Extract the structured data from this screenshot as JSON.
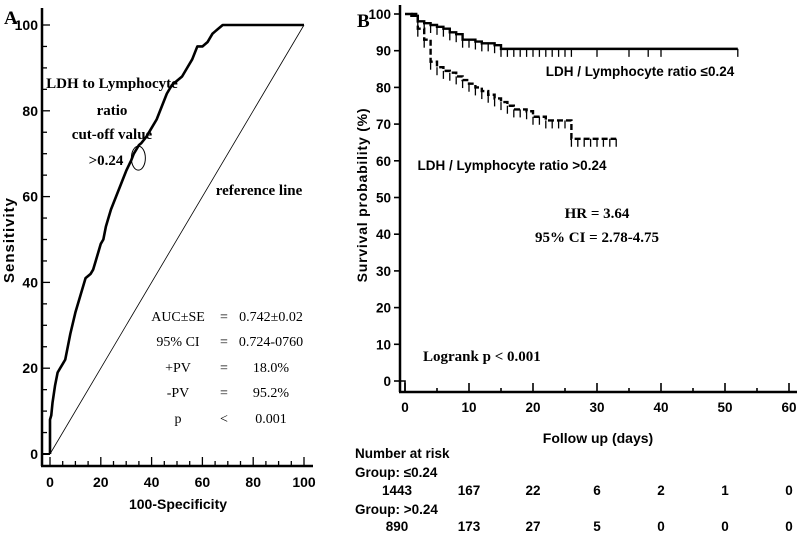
{
  "chart_data": [
    {
      "panel": "A",
      "type": "line",
      "title": "",
      "xlabel": "100-Specificity",
      "ylabel": "Sensitivity",
      "xlim": [
        0,
        100
      ],
      "ylim": [
        0,
        100
      ],
      "x_ticks": [
        0,
        20,
        40,
        60,
        80,
        100
      ],
      "y_ticks": [
        0,
        20,
        40,
        60,
        80,
        100
      ],
      "grid": false,
      "series": [
        {
          "name": "ROC curve (LDH to Lymphocyte ratio)",
          "x": [
            0,
            0,
            0.5,
            1,
            1.5,
            2,
            3,
            4,
            5,
            6,
            7,
            8,
            10,
            12,
            14,
            16,
            17,
            18,
            19,
            20,
            21,
            22,
            23,
            24,
            26,
            28,
            30,
            32,
            33,
            34,
            35,
            36,
            38,
            40,
            42,
            44,
            46,
            48,
            50,
            52,
            54,
            56,
            58,
            60,
            62,
            64,
            65,
            66,
            68,
            70,
            72,
            80,
            90,
            100
          ],
          "y": [
            0,
            8,
            9,
            12,
            14,
            16,
            19,
            20,
            21,
            22,
            25,
            28,
            33,
            37,
            41,
            42,
            43,
            45,
            47,
            49,
            50,
            53,
            55,
            57,
            60,
            63,
            66,
            68.5,
            70,
            71,
            72,
            72.5,
            74,
            76,
            78,
            81,
            84,
            86,
            87,
            88,
            90,
            92,
            95,
            95,
            96,
            98,
            98.5,
            99,
            100,
            100,
            100,
            100,
            100,
            100
          ]
        },
        {
          "name": "reference line",
          "x": [
            0,
            100
          ],
          "y": [
            0,
            100
          ]
        }
      ],
      "annotations": [
        {
          "text": "LDH to Lymphocyte",
          "line": 1
        },
        {
          "text": "ratio",
          "line": 2
        },
        {
          "text": "cut-off value",
          "line": 3
        },
        {
          "text": ">0.24",
          "line": 4
        },
        {
          "text": "reference line"
        },
        {
          "text": "cut-off marker",
          "x": 34,
          "y": 68.5
        }
      ],
      "stats": [
        {
          "label": "AUC±SE",
          "op": "=",
          "value": "0.742±0.02"
        },
        {
          "label": "95% CI",
          "op": "=",
          "value": "0.724-0760"
        },
        {
          "label": "+PV",
          "op": "=",
          "value": "18.0%"
        },
        {
          "label": "-PV",
          "op": "=",
          "value": "95.2%"
        },
        {
          "label": "p",
          "op": "<",
          "value": "0.001"
        }
      ]
    },
    {
      "panel": "B",
      "type": "line",
      "subtype": "kaplan-meier step",
      "xlabel": "Follow up (days)",
      "ylabel": "Survival probability (%)",
      "xlim": [
        0,
        60
      ],
      "ylim": [
        0,
        100
      ],
      "x_ticks": [
        0,
        10,
        20,
        30,
        40,
        50,
        60
      ],
      "y_ticks": [
        0,
        10,
        20,
        30,
        40,
        50,
        60,
        70,
        80,
        90,
        100
      ],
      "grid": false,
      "series": [
        {
          "name": "LDH / Lymphocyte ratio ≤0.24",
          "style": "solid",
          "steps_x": [
            0,
            1,
            2,
            3,
            4,
            5,
            6,
            7,
            8,
            9,
            10,
            11,
            12,
            13,
            14,
            15,
            52
          ],
          "steps_y": [
            100,
            99.5,
            98,
            97.5,
            97,
            96.5,
            96,
            95,
            94.5,
            93,
            93,
            92.5,
            92,
            92,
            91.5,
            90.5,
            90.5
          ],
          "censor_x": [
            2,
            3,
            4,
            5,
            6,
            7,
            8,
            9,
            10,
            11,
            12,
            13,
            14,
            15,
            16,
            17,
            18,
            19,
            20,
            21,
            22,
            23,
            24,
            25,
            26,
            30,
            35,
            38,
            40,
            52
          ]
        },
        {
          "name": "LDH / Lymphocyte ratio >0.24",
          "style": "dashed",
          "steps_x": [
            1,
            2,
            3,
            4,
            5,
            6,
            7,
            8,
            9,
            10,
            11,
            12,
            13,
            14,
            15,
            16,
            17,
            18,
            19,
            20,
            22,
            24,
            26,
            33
          ],
          "steps_y": [
            100,
            96,
            93,
            87,
            85.5,
            84.5,
            84,
            83,
            82,
            81,
            80,
            79,
            78,
            77,
            76,
            75,
            74,
            74,
            73.5,
            72,
            71,
            71,
            66,
            66
          ],
          "censor_x": [
            2,
            3,
            4,
            5,
            6,
            7,
            8,
            9,
            10,
            11,
            12,
            13,
            14,
            15,
            16,
            17,
            18,
            19,
            20,
            21,
            22,
            23,
            24,
            25,
            26,
            27,
            28,
            29,
            30,
            31,
            32,
            33
          ]
        }
      ],
      "annotations": [
        {
          "text": "LDH / Lymphocyte ratio ≤0.24"
        },
        {
          "text": "LDH / Lymphocyte ratio >0.24"
        },
        {
          "text": "HR = 3.64"
        },
        {
          "text": "95% CI = 2.78-4.75"
        },
        {
          "text": "Logrank p < 0.001"
        }
      ],
      "risk_table": {
        "title": "Number at risk",
        "time_points": [
          0,
          10,
          20,
          30,
          40,
          50,
          60
        ],
        "groups": [
          {
            "label": "Group: ≤0.24",
            "values": [
              1443,
              167,
              22,
              6,
              2,
              1,
              0
            ]
          },
          {
            "label": "Group: >0.24",
            "values": [
              890,
              173,
              27,
              5,
              0,
              0,
              0
            ]
          }
        ]
      }
    }
  ],
  "panelA": {
    "letter": "A",
    "ylabel": "Sensitivity",
    "xlabel": "100-Specificity",
    "yticks": [
      "0",
      "20",
      "40",
      "60",
      "80",
      "100"
    ],
    "xticks": [
      "0",
      "20",
      "40",
      "60",
      "80",
      "100"
    ],
    "cutoff_label": [
      "LDH to Lymphocyte",
      "ratio",
      "cut-off value",
      ">0.24"
    ],
    "reference_label": "reference line",
    "stats": {
      "r0": {
        "label": "AUC±SE",
        "op": "=",
        "value": "0.742±0.02"
      },
      "r1": {
        "label": "95% CI",
        "op": "=",
        "value": "0.724-0760"
      },
      "r2": {
        "label": "+PV",
        "op": "=",
        "value": "18.0%"
      },
      "r3": {
        "label": "-PV",
        "op": "=",
        "value": "95.2%"
      },
      "r4": {
        "label": "p",
        "op": "<",
        "value": "0.001"
      }
    }
  },
  "panelB": {
    "letter": "B",
    "ylabel": "Survival probability (%)",
    "xlabel": "Follow up (days)",
    "yticks": [
      "0",
      "10",
      "20",
      "30",
      "40",
      "50",
      "60",
      "70",
      "80",
      "90",
      "100"
    ],
    "xticks": [
      "0",
      "10",
      "20",
      "30",
      "40",
      "50",
      "60"
    ],
    "label_low": "LDH / Lymphocyte ratio ≤0.24",
    "label_high": "LDH / Lymphocyte ratio >0.24",
    "hr": "HR = 3.64",
    "ci": "95% CI = 2.78-4.75",
    "logrank": "Logrank p < 0.001",
    "risk": {
      "title": "Number at risk",
      "g1_label": "Group: ≤0.24",
      "g1": [
        "1443",
        "167",
        "22",
        "6",
        "2",
        "1",
        "0"
      ],
      "g2_label": "Group: >0.24",
      "g2": [
        "890",
        "173",
        "27",
        "5",
        "0",
        "0",
        "0"
      ]
    }
  }
}
